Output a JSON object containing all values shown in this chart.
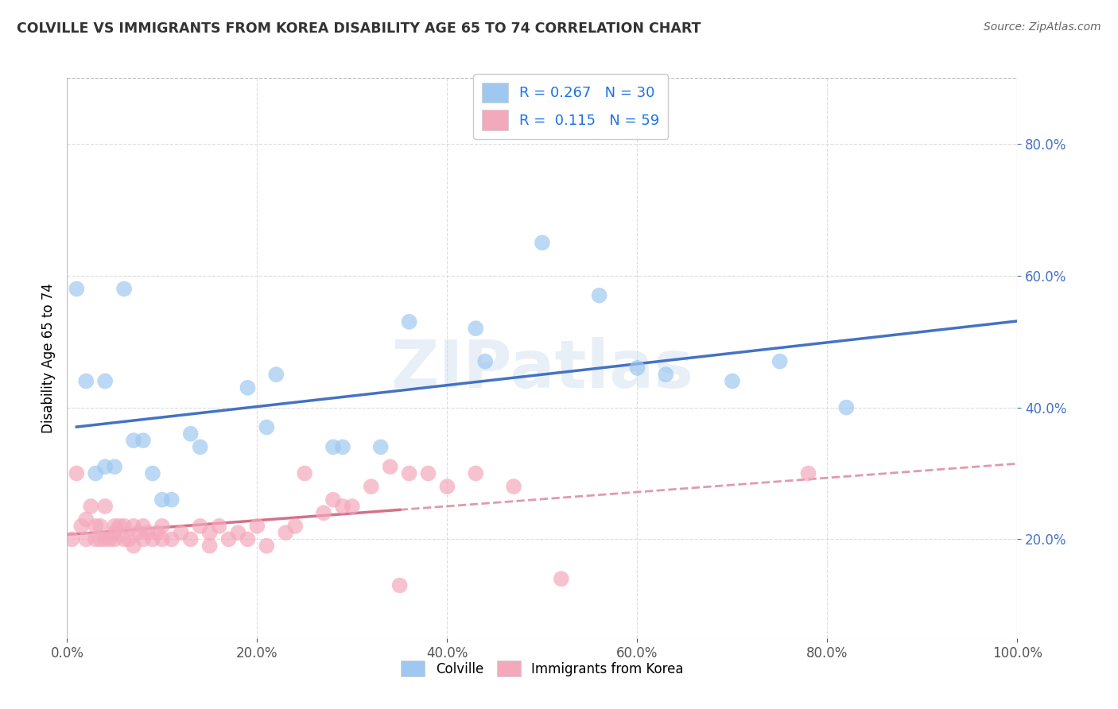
{
  "title": "COLVILLE VS IMMIGRANTS FROM KOREA DISABILITY AGE 65 TO 74 CORRELATION CHART",
  "source": "Source: ZipAtlas.com",
  "ylabel": "Disability Age 65 to 74",
  "legend1_label": "R = 0.267   N = 30",
  "legend2_label": "R =  0.115   N = 59",
  "legend_bottom": [
    "Colville",
    "Immigrants from Korea"
  ],
  "colville_color": "#9EC8F0",
  "korea_color": "#F4A8BC",
  "colville_line_color": "#4472C4",
  "korea_line_color": "#D4708A",
  "watermark": "ZIPatlas",
  "colville_scatter_x": [
    1,
    2,
    3,
    4,
    4,
    6,
    7,
    8,
    9,
    10,
    11,
    13,
    14,
    19,
    21,
    22,
    28,
    29,
    33,
    36,
    43,
    44,
    50,
    56,
    60,
    63,
    70,
    75,
    82,
    5
  ],
  "colville_scatter_y": [
    58,
    44,
    30,
    31,
    44,
    58,
    35,
    35,
    30,
    26,
    26,
    36,
    34,
    43,
    37,
    45,
    34,
    34,
    34,
    53,
    52,
    47,
    65,
    57,
    46,
    45,
    44,
    47,
    40,
    31
  ],
  "korea_scatter_x": [
    0.5,
    1,
    1.5,
    2,
    2,
    2.5,
    3,
    3,
    3.5,
    3.5,
    4,
    4,
    4.5,
    5,
    5,
    5,
    5.5,
    6,
    6,
    6.5,
    7,
    7,
    7.5,
    8,
    8,
    8.5,
    9,
    9.5,
    10,
    10,
    11,
    12,
    13,
    14,
    15,
    15,
    16,
    17,
    18,
    19,
    20,
    21,
    23,
    24,
    25,
    27,
    28,
    29,
    30,
    32,
    34,
    36,
    38,
    40,
    43,
    47,
    52,
    78,
    35
  ],
  "korea_scatter_y": [
    20,
    30,
    22,
    23,
    20,
    25,
    20,
    22,
    20,
    22,
    20,
    25,
    20,
    22,
    20,
    21,
    22,
    20,
    22,
    20,
    19,
    22,
    21,
    20,
    22,
    21,
    20,
    21,
    20,
    22,
    20,
    21,
    20,
    22,
    19,
    21,
    22,
    20,
    21,
    20,
    22,
    19,
    21,
    22,
    30,
    24,
    26,
    25,
    25,
    28,
    31,
    30,
    30,
    28,
    30,
    28,
    14,
    30,
    13
  ],
  "xlim": [
    0,
    100
  ],
  "ylim": [
    5,
    90
  ],
  "background_color": "#FFFFFF",
  "plot_bg_color": "#FFFFFF",
  "grid_color": "#DDDDDD"
}
